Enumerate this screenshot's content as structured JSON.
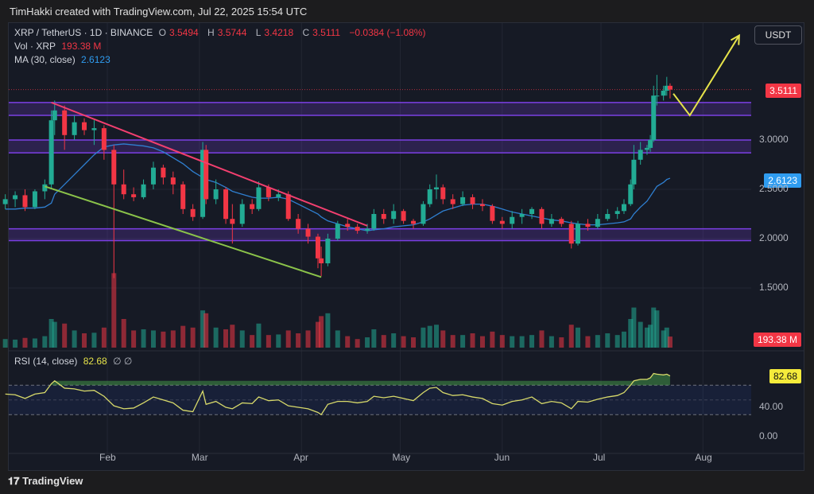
{
  "attribution": "TimHakki created with TradingView.com, Jul 22, 2025 15:54 UTC",
  "currency_button": "USDT",
  "footer_logo": "TradingView",
  "legend": {
    "symbol": "XRP / TetherUS · 1D · BINANCE",
    "o_label": "O",
    "o": "3.5494",
    "h_label": "H",
    "h": "3.5744",
    "l_label": "L",
    "l": "3.4218",
    "c_label": "C",
    "c": "3.5111",
    "change": "−0.0384 (−1.08%)",
    "vol_label": "Vol · XRP",
    "vol": "193.38 M",
    "ma_label": "MA (30, close)",
    "ma": "2.6123",
    "rsi_label": "RSI (14, close)",
    "rsi": "82.68",
    "rsi_extra": "∅ ∅"
  },
  "tags": {
    "last_price": "3.5111",
    "ma": "2.6123",
    "volume": "193.38 M",
    "rsi": "82.68"
  },
  "colors": {
    "up": "#22ab94",
    "down": "#f23645",
    "ma": "#2f7fd0",
    "rsi": "#d7d96a",
    "zone": "#7b3fe4",
    "resistance_line": "#f23f6f",
    "support_line": "#8bc34a",
    "projection": "#e6e34a"
  },
  "chart_data": {
    "type": "candlestick",
    "year": 2025,
    "price_ticks": [
      "3.0000",
      "2.5000",
      "2.0000",
      "1.5000"
    ],
    "price_tick_values": [
      3.0,
      2.5,
      2.0,
      1.5
    ],
    "rsi_ticks": [
      "40.00",
      "0.00"
    ],
    "rsi_tick_values": [
      40,
      0
    ],
    "rsi_bands": [
      70,
      50,
      30
    ],
    "x_ticks": [
      "Feb",
      "Mar",
      "Apr",
      "May",
      "Jun",
      "Jul",
      "Aug"
    ],
    "x_tick_dates": [
      "02-01",
      "03-01",
      "04-01",
      "05-01",
      "06-01",
      "07-01",
      "08-01"
    ],
    "candle_columns": [
      "date",
      "open",
      "high",
      "low",
      "close",
      "volume_m",
      "ma30",
      "rsi14"
    ],
    "candles": [
      [
        "01-01",
        2.35,
        2.45,
        2.3,
        2.4,
        150,
        2.3,
        58
      ],
      [
        "01-04",
        2.4,
        2.48,
        2.32,
        2.44,
        140,
        2.3,
        57
      ],
      [
        "01-07",
        2.44,
        2.5,
        2.28,
        2.32,
        170,
        2.31,
        52
      ],
      [
        "01-10",
        2.32,
        2.5,
        2.3,
        2.48,
        160,
        2.31,
        58
      ],
      [
        "01-13",
        2.48,
        2.6,
        2.4,
        2.55,
        200,
        2.32,
        60
      ],
      [
        "01-15",
        2.55,
        3.3,
        2.5,
        3.2,
        500,
        2.36,
        72
      ],
      [
        "01-16",
        3.2,
        3.4,
        3.05,
        3.3,
        450,
        2.45,
        76
      ],
      [
        "01-19",
        3.3,
        3.35,
        2.9,
        3.05,
        420,
        2.55,
        66
      ],
      [
        "01-22",
        3.05,
        3.25,
        3.0,
        3.18,
        300,
        2.65,
        65
      ],
      [
        "01-25",
        3.18,
        3.22,
        3.05,
        3.1,
        250,
        2.75,
        62
      ],
      [
        "01-28",
        3.1,
        3.2,
        2.95,
        3.12,
        260,
        2.85,
        63
      ],
      [
        "01-31",
        3.12,
        3.15,
        2.8,
        2.9,
        350,
        2.93,
        55
      ],
      [
        "02-03",
        2.9,
        2.95,
        1.6,
        2.55,
        1300,
        2.95,
        42
      ],
      [
        "02-06",
        2.55,
        2.7,
        2.4,
        2.45,
        500,
        2.96,
        38
      ],
      [
        "02-09",
        2.45,
        2.52,
        2.38,
        2.42,
        300,
        2.95,
        39
      ],
      [
        "02-12",
        2.42,
        2.6,
        2.4,
        2.55,
        320,
        2.94,
        46
      ],
      [
        "02-15",
        2.55,
        2.78,
        2.5,
        2.72,
        300,
        2.92,
        54
      ],
      [
        "02-18",
        2.72,
        2.75,
        2.55,
        2.62,
        280,
        2.88,
        50
      ],
      [
        "02-21",
        2.62,
        2.68,
        2.45,
        2.55,
        300,
        2.82,
        46
      ],
      [
        "02-24",
        2.55,
        2.58,
        2.25,
        2.3,
        380,
        2.76,
        36
      ],
      [
        "02-27",
        2.3,
        2.35,
        2.18,
        2.22,
        350,
        2.68,
        34
      ],
      [
        "03-02",
        2.22,
        2.98,
        2.2,
        2.9,
        650,
        2.62,
        62
      ],
      [
        "03-03",
        2.9,
        2.95,
        2.35,
        2.4,
        600,
        2.6,
        44
      ],
      [
        "03-06",
        2.4,
        2.6,
        2.35,
        2.5,
        350,
        2.57,
        48
      ],
      [
        "03-09",
        2.5,
        2.52,
        2.15,
        2.2,
        320,
        2.52,
        40
      ],
      [
        "03-11",
        2.2,
        2.35,
        1.95,
        2.15,
        400,
        2.48,
        38
      ],
      [
        "03-14",
        2.15,
        2.4,
        2.12,
        2.35,
        300,
        2.45,
        46
      ],
      [
        "03-17",
        2.35,
        2.4,
        2.25,
        2.3,
        220,
        2.42,
        45
      ],
      [
        "03-19",
        2.3,
        2.58,
        2.28,
        2.52,
        420,
        2.41,
        54
      ],
      [
        "03-22",
        2.52,
        2.55,
        2.38,
        2.42,
        220,
        2.41,
        49
      ],
      [
        "03-25",
        2.42,
        2.5,
        2.38,
        2.45,
        230,
        2.42,
        50
      ],
      [
        "03-28",
        2.45,
        2.48,
        2.18,
        2.2,
        300,
        2.4,
        42
      ],
      [
        "03-31",
        2.2,
        2.25,
        2.05,
        2.1,
        250,
        2.35,
        40
      ],
      [
        "04-03",
        2.1,
        2.15,
        1.95,
        2.02,
        300,
        2.3,
        38
      ],
      [
        "04-06",
        2.02,
        2.05,
        1.7,
        1.8,
        450,
        2.25,
        33
      ],
      [
        "04-07",
        1.8,
        1.92,
        1.62,
        1.75,
        550,
        2.22,
        30
      ],
      [
        "04-09",
        1.75,
        2.05,
        1.72,
        2.0,
        600,
        2.18,
        44
      ],
      [
        "04-12",
        2.0,
        2.18,
        1.98,
        2.15,
        300,
        2.15,
        48
      ],
      [
        "04-15",
        2.15,
        2.2,
        2.08,
        2.12,
        200,
        2.12,
        48
      ],
      [
        "04-18",
        2.12,
        2.15,
        2.05,
        2.08,
        150,
        2.1,
        46
      ],
      [
        "04-21",
        2.08,
        2.15,
        2.05,
        2.1,
        180,
        2.08,
        48
      ],
      [
        "04-23",
        2.1,
        2.3,
        2.08,
        2.25,
        320,
        2.09,
        55
      ],
      [
        "04-26",
        2.25,
        2.3,
        2.15,
        2.2,
        220,
        2.1,
        53
      ],
      [
        "04-29",
        2.2,
        2.35,
        2.15,
        2.28,
        250,
        2.12,
        55
      ],
      [
        "05-02",
        2.28,
        2.3,
        2.15,
        2.18,
        200,
        2.13,
        52
      ],
      [
        "05-05",
        2.18,
        2.2,
        2.1,
        2.15,
        180,
        2.14,
        49
      ],
      [
        "05-08",
        2.15,
        2.38,
        2.13,
        2.35,
        350,
        2.17,
        60
      ],
      [
        "05-10",
        2.35,
        2.55,
        2.32,
        2.5,
        380,
        2.2,
        66
      ],
      [
        "05-12",
        2.5,
        2.65,
        2.4,
        2.52,
        400,
        2.24,
        67
      ],
      [
        "05-14",
        2.52,
        2.55,
        2.35,
        2.4,
        300,
        2.28,
        60
      ],
      [
        "05-17",
        2.4,
        2.45,
        2.3,
        2.35,
        220,
        2.31,
        56
      ],
      [
        "05-20",
        2.35,
        2.48,
        2.33,
        2.42,
        220,
        2.34,
        57
      ],
      [
        "05-23",
        2.42,
        2.45,
        2.3,
        2.35,
        250,
        2.35,
        54
      ],
      [
        "05-26",
        2.35,
        2.4,
        2.28,
        2.33,
        200,
        2.35,
        52
      ],
      [
        "05-29",
        2.33,
        2.35,
        2.15,
        2.18,
        280,
        2.33,
        45
      ],
      [
        "06-01",
        2.18,
        2.22,
        2.1,
        2.15,
        220,
        2.3,
        43
      ],
      [
        "06-04",
        2.15,
        2.28,
        2.1,
        2.22,
        200,
        2.27,
        48
      ],
      [
        "06-07",
        2.22,
        2.3,
        2.15,
        2.25,
        200,
        2.25,
        50
      ],
      [
        "06-10",
        2.25,
        2.32,
        2.2,
        2.3,
        220,
        2.23,
        54
      ],
      [
        "06-13",
        2.3,
        2.32,
        2.1,
        2.15,
        300,
        2.21,
        45
      ],
      [
        "06-16",
        2.15,
        2.25,
        2.12,
        2.2,
        200,
        2.19,
        48
      ],
      [
        "06-19",
        2.2,
        2.22,
        2.12,
        2.15,
        180,
        2.18,
        46
      ],
      [
        "06-22",
        2.15,
        2.18,
        1.9,
        1.95,
        400,
        2.16,
        38
      ],
      [
        "06-24",
        1.95,
        2.18,
        1.93,
        2.15,
        350,
        2.15,
        48
      ],
      [
        "06-27",
        2.15,
        2.2,
        2.08,
        2.12,
        200,
        2.14,
        47
      ],
      [
        "06-30",
        2.12,
        2.25,
        2.1,
        2.2,
        220,
        2.14,
        51
      ],
      [
        "07-03",
        2.2,
        2.3,
        2.18,
        2.25,
        250,
        2.15,
        54
      ],
      [
        "07-06",
        2.25,
        2.32,
        2.2,
        2.28,
        220,
        2.16,
        56
      ],
      [
        "07-08",
        2.28,
        2.4,
        2.25,
        2.35,
        280,
        2.17,
        60
      ],
      [
        "07-10",
        2.35,
        2.6,
        2.33,
        2.55,
        500,
        2.2,
        70
      ],
      [
        "07-11",
        2.55,
        2.95,
        2.5,
        2.8,
        700,
        2.25,
        76
      ],
      [
        "07-13",
        2.8,
        2.98,
        2.75,
        2.9,
        450,
        2.32,
        78
      ],
      [
        "07-15",
        2.9,
        2.95,
        2.85,
        2.92,
        350,
        2.38,
        78
      ],
      [
        "07-16",
        2.92,
        3.05,
        2.88,
        3.0,
        400,
        2.43,
        80
      ],
      [
        "07-17",
        3.0,
        3.55,
        2.98,
        3.45,
        700,
        2.48,
        86
      ],
      [
        "07-18",
        3.45,
        3.66,
        3.35,
        3.45,
        650,
        2.53,
        85
      ],
      [
        "07-20",
        3.45,
        3.55,
        3.4,
        3.5,
        300,
        2.57,
        84
      ],
      [
        "07-21",
        3.5,
        3.64,
        3.45,
        3.55,
        350,
        2.6,
        85
      ],
      [
        "07-22",
        3.5494,
        3.5744,
        3.4218,
        3.5111,
        193.38,
        2.6123,
        82.68
      ]
    ],
    "zones": [
      [
        3.25,
        3.38
      ],
      [
        2.87,
        3.0
      ],
      [
        1.98,
        2.1
      ]
    ],
    "trendlines": {
      "resistance": [
        [
          "01-15",
          3.38
        ],
        [
          "04-21",
          2.13
        ]
      ],
      "support": [
        [
          "01-13",
          2.53
        ],
        [
          "04-07",
          1.61
        ]
      ]
    },
    "projection_arrow": [
      [
        "07-23",
        3.47
      ],
      [
        "07-28",
        3.25
      ],
      [
        "08-12",
        4.06
      ]
    ]
  }
}
